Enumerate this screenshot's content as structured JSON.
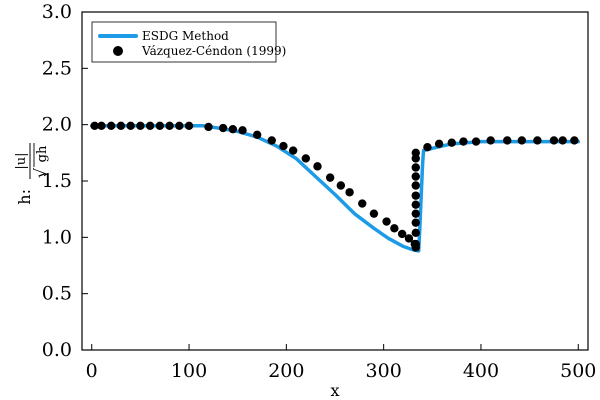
{
  "chart_data": {
    "type": "line",
    "title": "",
    "xlabel": "x",
    "ylabel": "h: |u| / √(gh)",
    "ylabel_parts": {
      "prefix": "h:",
      "numerator": "|u|",
      "denominator": "gh"
    },
    "xlim": [
      -10,
      510
    ],
    "ylim": [
      0.0,
      3.0
    ],
    "x_ticks": [
      0,
      100,
      200,
      300,
      400,
      500
    ],
    "x_tick_labels": [
      "0",
      "100",
      "200",
      "300",
      "400",
      "500"
    ],
    "y_ticks": [
      0.0,
      0.5,
      1.0,
      1.5,
      2.0,
      2.5,
      3.0
    ],
    "y_tick_labels": [
      "0.0",
      "0.5",
      "1.0",
      "1.5",
      "2.0",
      "2.5",
      "3.0"
    ],
    "grid": false,
    "legend_position": "top-left",
    "series": [
      {
        "name": "ESDG Method",
        "kind": "line",
        "color": "#1e9be6",
        "x": [
          0,
          25,
          50,
          75,
          100,
          115,
          130,
          150,
          170,
          190,
          210,
          230,
          250,
          270,
          290,
          305,
          320,
          330,
          336,
          337,
          338,
          339,
          340,
          341,
          350,
          360,
          370,
          385,
          400,
          420,
          440,
          460,
          480,
          500
        ],
        "y": [
          1.99,
          1.99,
          1.99,
          1.99,
          1.99,
          1.99,
          1.97,
          1.94,
          1.89,
          1.81,
          1.7,
          1.54,
          1.38,
          1.21,
          1.08,
          0.99,
          0.92,
          0.89,
          0.88,
          1.05,
          1.25,
          1.45,
          1.65,
          1.77,
          1.79,
          1.81,
          1.83,
          1.84,
          1.85,
          1.85,
          1.85,
          1.85,
          1.85,
          1.85
        ]
      },
      {
        "name": "Vázquez-Céndon (1999)",
        "kind": "scatter",
        "color": "#000000",
        "x": [
          3,
          10,
          20,
          30,
          40,
          50,
          60,
          70,
          80,
          90,
          100,
          120,
          135,
          145,
          155,
          170,
          185,
          197,
          207,
          220,
          232,
          245,
          256,
          265,
          278,
          290,
          303,
          311,
          319,
          326,
          332,
          333,
          333,
          333,
          333,
          333,
          333,
          333,
          333,
          333,
          333,
          333,
          333,
          345,
          357,
          370,
          382,
          395,
          410,
          427,
          442,
          458,
          475,
          484,
          496
        ],
        "y": [
          1.99,
          1.99,
          1.99,
          1.99,
          1.99,
          1.99,
          1.99,
          1.99,
          1.99,
          1.99,
          1.99,
          1.98,
          1.97,
          1.96,
          1.95,
          1.91,
          1.86,
          1.81,
          1.77,
          1.7,
          1.63,
          1.53,
          1.46,
          1.4,
          1.3,
          1.21,
          1.14,
          1.08,
          1.03,
          0.99,
          0.94,
          0.91,
          0.94,
          1.04,
          1.13,
          1.21,
          1.29,
          1.37,
          1.46,
          1.54,
          1.62,
          1.7,
          1.75,
          1.8,
          1.83,
          1.84,
          1.85,
          1.85,
          1.86,
          1.86,
          1.86,
          1.86,
          1.86,
          1.86,
          1.86
        ]
      }
    ]
  }
}
